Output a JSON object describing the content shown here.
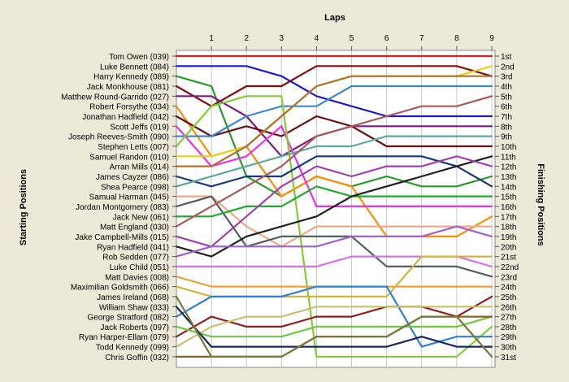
{
  "chart_data": {
    "type": "line",
    "subtype": "bump",
    "title": "",
    "x_axis_title": "Laps",
    "y_axis_title_left": "Starting Positions",
    "y_axis_title_right": "Finishing Positions",
    "x": [
      0,
      1,
      2,
      3,
      4,
      5,
      6,
      7,
      8,
      9
    ],
    "x_tick_labels": [
      "1",
      "2",
      "3",
      "4",
      "5",
      "6",
      "7",
      "8",
      "9"
    ],
    "ylim": [
      1,
      31
    ],
    "y_reversed": true,
    "grid": true,
    "grid_axis": "x",
    "left_labels": [
      "Tom Owen (039)",
      "Luke Bennett (084)",
      "Harry Kennedy (089)",
      "Jack Monkhouse (081)",
      "Matthew Round-Garrido (027)",
      "Robert Forsythe (034)",
      "Jonathan Hadfield (042)",
      "Scott Jeffs (019)",
      "Joseph Reeves-Smith (090)",
      "Stephen Letts (007)",
      "Samuel Randon (010)",
      "Arran Mills (014)",
      "James Cayzer (086)",
      "Shea Pearce (098)",
      "Samual Harman (045)",
      "Jordan Montgomery (083)",
      "Jack New (061)",
      "Matt England (030)",
      "Jake Campbell-Mills (015)",
      "Ryan Hadfield (041)",
      "Rob Sedden (077)",
      "Luke Child (051)",
      "Matt Davies (008)",
      "Maximilian Goldsmith (066)",
      "James Ireland (068)",
      "William Shaw (033)",
      "George Stratford (082)",
      "Jack Roberts (097)",
      "Ryan Harper-Ellam (079)",
      "Todd Kennedy (099)",
      "Chris Goffin (032)"
    ],
    "right_labels": [
      "1st",
      "2nd",
      "3rd",
      "4th",
      "5th",
      "6th",
      "7th",
      "8th",
      "9th",
      "10th",
      "11th",
      "12th",
      "13th",
      "14th",
      "15th",
      "16th",
      "17th",
      "18th",
      "19th",
      "20th",
      "21st",
      "22nd",
      "23rd",
      "24th",
      "25th",
      "26th",
      "27th",
      "28th",
      "29th",
      "30th",
      "31st"
    ],
    "series": [
      {
        "color": "#d62020",
        "values": [
          1,
          1,
          1,
          1,
          1,
          1,
          1,
          1,
          1,
          1
        ]
      },
      {
        "color": "#1a1ad0",
        "values": [
          2,
          2,
          2,
          3,
          5,
          6,
          7,
          7,
          7,
          7
        ]
      },
      {
        "color": "#2a9a2a",
        "values": [
          3,
          4,
          13,
          15,
          13,
          14,
          13,
          14,
          14,
          13
        ]
      },
      {
        "color": "#801010",
        "values": [
          4,
          6,
          4,
          4,
          2,
          2,
          2,
          2,
          2,
          3
        ]
      },
      {
        "color": "#801a80",
        "values": [
          5,
          5,
          7,
          11,
          9,
          8,
          8,
          8,
          8,
          8
        ]
      },
      {
        "color": "#ff8c00",
        "values": [
          6,
          11,
          10,
          15,
          13,
          14,
          19,
          19,
          19,
          17
        ]
      },
      {
        "color": "#6b1010",
        "values": [
          7,
          9,
          8,
          9,
          7,
          8,
          10,
          10,
          10,
          10
        ]
      },
      {
        "color": "#e832e8",
        "values": [
          8,
          12,
          11,
          8,
          16,
          16,
          16,
          16,
          16,
          16
        ]
      },
      {
        "color": "#3a88d4",
        "values": [
          9,
          9,
          7,
          6,
          6,
          4,
          4,
          4,
          4,
          4
        ]
      },
      {
        "color": "#80d030",
        "values": [
          10,
          6,
          5,
          5,
          31,
          31,
          31,
          31,
          31,
          28
        ]
      },
      {
        "color": "#e8d018",
        "values": [
          11,
          11,
          10,
          7,
          4,
          3,
          3,
          3,
          3,
          2
        ]
      },
      {
        "color": "#b07030",
        "values": [
          12,
          12,
          10,
          7,
          4,
          3,
          3,
          3,
          3,
          3
        ]
      },
      {
        "color": "#183878",
        "values": [
          13,
          14,
          13,
          13,
          11,
          11,
          11,
          11,
          12,
          14
        ]
      },
      {
        "color": "#5aa8a0",
        "values": [
          14,
          13,
          12,
          11,
          10,
          10,
          9,
          9,
          9,
          9
        ]
      },
      {
        "color": "#f0a888",
        "values": [
          15,
          15,
          18,
          20,
          18,
          18,
          18,
          18,
          18,
          18
        ]
      },
      {
        "color": "#506060",
        "values": [
          16,
          15,
          20,
          19,
          19,
          19,
          22,
          22,
          22,
          23
        ]
      },
      {
        "color": "#20a830",
        "values": [
          17,
          17,
          16,
          16,
          14,
          15,
          15,
          15,
          15,
          15
        ]
      },
      {
        "color": "#a85a5a",
        "values": [
          18,
          16,
          14,
          12,
          9,
          8,
          7,
          6,
          6,
          5
        ]
      },
      {
        "color": "#202020",
        "values": [
          20,
          21,
          19,
          18,
          17,
          15,
          14,
          13,
          12,
          11
        ]
      },
      {
        "color": "#a040b0",
        "values": [
          19,
          20,
          17,
          14,
          12,
          13,
          12,
          12,
          11,
          12
        ]
      },
      {
        "color": "#a060d0",
        "values": [
          21,
          20,
          20,
          20,
          20,
          19,
          19,
          19,
          18,
          19
        ]
      },
      {
        "color": "#d870e8",
        "values": [
          22,
          22,
          22,
          22,
          22,
          21,
          21,
          21,
          21,
          22
        ]
      },
      {
        "color": "#e8a040",
        "values": [
          23,
          24,
          24,
          24,
          24,
          24,
          24,
          24,
          24,
          24
        ]
      },
      {
        "color": "#d2b440",
        "values": [
          24,
          25,
          25,
          25,
          25,
          25,
          25,
          21,
          21,
          21
        ]
      },
      {
        "color": "#3080d8",
        "values": [
          27,
          25,
          25,
          25,
          24,
          24,
          24,
          30,
          29,
          29
        ]
      },
      {
        "color": "#902020",
        "values": [
          29,
          27,
          28,
          28,
          27,
          27,
          26,
          26,
          27,
          25
        ]
      },
      {
        "color": "#c8c070",
        "values": [
          30,
          28,
          27,
          27,
          26,
          26,
          26,
          26,
          26,
          26
        ]
      },
      {
        "color": "#70c840",
        "values": [
          28,
          29,
          29,
          29,
          28,
          28,
          28,
          28,
          28,
          27
        ]
      },
      {
        "color": "#806820",
        "values": [
          31,
          31,
          31,
          31,
          29,
          29,
          29,
          27,
          27,
          27
        ]
      },
      {
        "color": "#182860",
        "values": [
          26,
          30,
          30,
          30,
          30,
          30,
          30,
          29,
          30,
          30
        ]
      },
      {
        "color": "#787838",
        "values": [
          25,
          31,
          31,
          31,
          29,
          29,
          29,
          27,
          27,
          31
        ]
      }
    ]
  }
}
